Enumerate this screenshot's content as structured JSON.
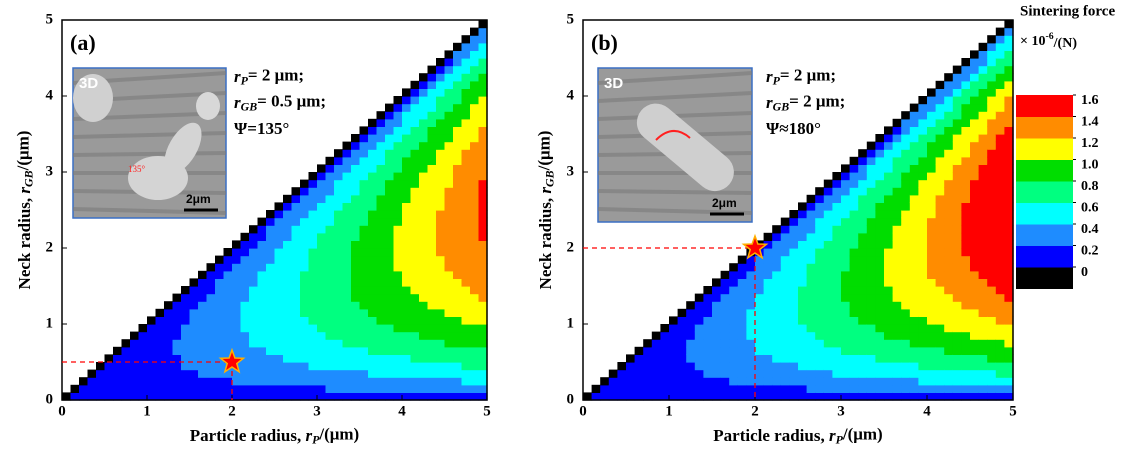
{
  "chart_data": [
    {
      "type": "contour",
      "panel_label": "(a)",
      "xlabel": {
        "text": "Particle  radius, ",
        "var": "r",
        "sub": "P",
        "unit": "/(μm)"
      },
      "ylabel": {
        "text": "Neck  radius, ",
        "var": "r",
        "sub": "GB",
        "unit": "/(μm)"
      },
      "xlim": [
        0,
        5
      ],
      "ylim": [
        0,
        5
      ],
      "xticks": [
        0,
        1,
        2,
        3,
        4,
        5
      ],
      "yticks": [
        0,
        1,
        2,
        3,
        4,
        5
      ],
      "marker": {
        "x": 2,
        "y": 0.5,
        "color": "#ff0000"
      },
      "inset": {
        "tag": "3D",
        "scale": "2μm",
        "angle": "135°"
      },
      "annotation": [
        {
          "var": "r",
          "sub": "P",
          "text": "= 2 μm;"
        },
        {
          "var": "r",
          "sub": "GB",
          "text": "= 0.5 μm;"
        },
        {
          "text": "Ψ=135°"
        }
      ]
    },
    {
      "type": "contour",
      "panel_label": "(b)",
      "xlabel": {
        "text": "Particle  radius, ",
        "var": "r",
        "sub": "P",
        "unit": "/(μm)"
      },
      "ylabel": {
        "text": "Neck  radius, ",
        "var": "r",
        "sub": "GB",
        "unit": "/(μm)"
      },
      "xlim": [
        0,
        5
      ],
      "ylim": [
        0,
        5
      ],
      "xticks": [
        0,
        1,
        2,
        3,
        4,
        5
      ],
      "yticks": [
        0,
        1,
        2,
        3,
        4,
        5
      ],
      "marker": {
        "x": 2,
        "y": 2,
        "color": "#ff0000"
      },
      "inset": {
        "tag": "3D",
        "scale": "2μm"
      },
      "annotation": [
        {
          "var": "r",
          "sub": "P",
          "text": "= 2 μm;"
        },
        {
          "var": "r",
          "sub": "GB",
          "text": "= 2 μm;"
        },
        {
          "text": "Ψ≈180°"
        }
      ],
      "colorbar": {
        "title": "Sintering force",
        "unit": {
          "multiplier": "× 10",
          "exponent": "-6",
          "suffix": "/(N)"
        },
        "levels": [
          0,
          0.2,
          0.4,
          0.6,
          0.8,
          {
            "value": 1,
            "label": "1.0"
          },
          1.2,
          1.4,
          1.6
        ],
        "colors": [
          "#000000",
          "#0000ff",
          "#1e8cff",
          "#00ffff",
          "#00ff80",
          "#00dd00",
          "#ffff00",
          "#ff8c00",
          "#ff0000"
        ]
      }
    }
  ]
}
